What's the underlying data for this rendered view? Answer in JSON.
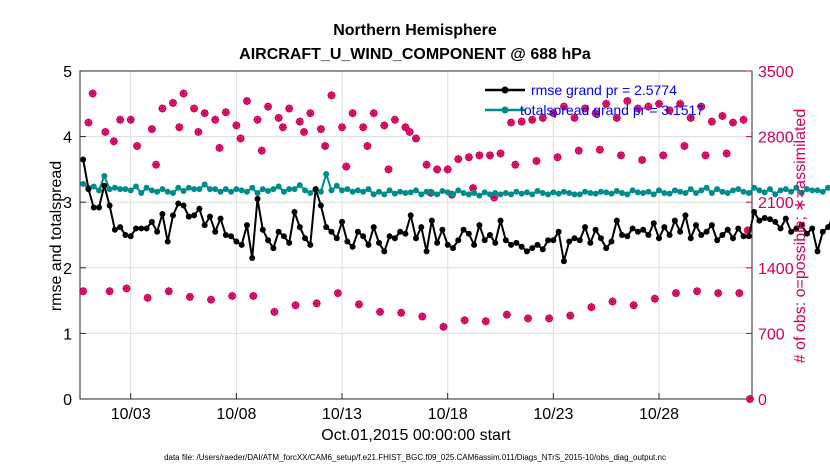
{
  "chart_data": {
    "type": "line",
    "title": "Northern Hemisphere",
    "subtitle": "AIRCRAFT_U_WIND_COMPONENT @ 688 hPa",
    "xlabel": "Oct.01,2015 00:00:00 start",
    "ylabel_left": "rmse and totalspread",
    "ylabel_right": "# of obs: o=possible; ∗=assimilated",
    "footer": "data file: /Users/raeder/DAI/ATM_forcXX/CAM6_setup/f.e21.FHIST_BGC.f09_025.CAM6assim.011/Diags_NTrS_2015-10/obs_diag_output.nc",
    "x_range": [
      0.6,
      32.4
    ],
    "y_left_range": [
      0,
      5
    ],
    "y_right_range": [
      0,
      3500
    ],
    "x_ticks": [
      {
        "value": 3,
        "label": "10/03"
      },
      {
        "value": 8,
        "label": "10/08"
      },
      {
        "value": 13,
        "label": "10/13"
      },
      {
        "value": 18,
        "label": "10/18"
      },
      {
        "value": 23,
        "label": "10/23"
      },
      {
        "value": 28,
        "label": "10/28"
      }
    ],
    "y_left_ticks": [
      "0",
      "1",
      "2",
      "3",
      "4",
      "5"
    ],
    "y_right_ticks": [
      "0",
      "700",
      "1400",
      "2100",
      "2800",
      "3500"
    ],
    "x_start": 0.75,
    "x_step": 0.25,
    "series": [
      {
        "name": "rmse",
        "legend": "rmse grand pr = 2.5774",
        "color": "#000000",
        "axis": "left",
        "values": [
          3.65,
          3.2,
          2.92,
          2.92,
          3.25,
          2.95,
          2.58,
          2.62,
          2.5,
          2.48,
          2.6,
          2.6,
          2.6,
          2.7,
          2.55,
          2.82,
          2.4,
          2.8,
          2.98,
          2.95,
          2.78,
          2.8,
          2.9,
          2.65,
          2.78,
          2.55,
          2.75,
          2.5,
          2.48,
          2.4,
          2.35,
          2.65,
          2.15,
          3.05,
          2.58,
          2.42,
          2.3,
          2.55,
          2.48,
          2.38,
          2.85,
          2.62,
          2.45,
          2.35,
          3.2,
          2.95,
          2.62,
          2.55,
          2.45,
          2.7,
          2.4,
          2.32,
          2.55,
          2.48,
          2.35,
          2.62,
          2.38,
          2.25,
          2.48,
          2.45,
          2.55,
          2.52,
          2.8,
          2.45,
          2.62,
          2.25,
          2.72,
          2.38,
          2.58,
          2.35,
          2.3,
          2.42,
          2.58,
          2.52,
          2.35,
          2.65,
          2.42,
          2.5,
          2.38,
          2.72,
          2.42,
          2.35,
          2.38,
          2.32,
          2.25,
          2.3,
          2.35,
          2.28,
          2.42,
          2.42,
          2.55,
          2.1,
          2.4,
          2.45,
          2.42,
          2.62,
          2.38,
          2.58,
          2.45,
          2.3,
          2.4,
          2.72,
          2.5,
          2.48,
          2.6,
          2.55,
          2.58,
          2.5,
          2.68,
          2.45,
          2.62,
          2.5,
          2.72,
          2.55,
          2.8,
          2.45,
          2.65,
          2.5,
          2.55,
          2.65,
          2.42,
          2.5,
          2.58,
          2.45,
          2.6,
          2.48,
          2.48,
          2.85,
          2.72,
          2.76,
          2.74,
          2.7,
          2.6,
          2.75,
          2.55,
          2.6,
          2.65,
          2.52,
          2.6,
          2.25,
          2.55,
          2.62,
          2.78,
          2.56
        ]
      },
      {
        "name": "totalspread",
        "legend": "totalspread grand pr = 3.1517",
        "color": "#008c8c",
        "axis": "left",
        "values": [
          3.28,
          3.22,
          3.24,
          3.18,
          3.4,
          3.2,
          3.22,
          3.2,
          3.2,
          3.18,
          3.24,
          3.14,
          3.22,
          3.18,
          3.16,
          3.2,
          3.16,
          3.14,
          3.22,
          3.17,
          3.22,
          3.2,
          3.2,
          3.27,
          3.2,
          3.2,
          3.16,
          3.2,
          3.16,
          3.2,
          3.18,
          3.16,
          3.22,
          3.14,
          3.2,
          3.17,
          3.2,
          3.24,
          3.16,
          3.2,
          3.2,
          3.26,
          3.18,
          3.14,
          3.2,
          3.16,
          3.43,
          3.18,
          3.25,
          3.18,
          3.2,
          3.16,
          3.18,
          3.16,
          3.2,
          3.12,
          3.16,
          3.12,
          3.18,
          3.13,
          3.16,
          3.14,
          3.15,
          3.18,
          3.12,
          3.16,
          3.15,
          3.12,
          3.17,
          3.15,
          3.12,
          3.18,
          3.14,
          3.12,
          3.14,
          3.1,
          3.15,
          3.12,
          3.14,
          3.12,
          3.14,
          3.12,
          3.16,
          3.13,
          3.15,
          3.12,
          3.17,
          3.14,
          3.12,
          3.15,
          3.13,
          3.16,
          3.14,
          3.12,
          3.12,
          3.16,
          3.14,
          3.13,
          3.16,
          3.15,
          3.13,
          3.17,
          3.14,
          3.12,
          3.18,
          3.15,
          3.14,
          3.16,
          3.12,
          3.18,
          3.14,
          3.13,
          3.18,
          3.16,
          3.14,
          3.2,
          3.14,
          3.18,
          3.22,
          3.14,
          3.2,
          3.16,
          3.14,
          3.18,
          3.2,
          3.16,
          3.14,
          3.22,
          3.18,
          3.15,
          3.2,
          3.12,
          3.18,
          3.2,
          3.16,
          3.22,
          3.14,
          3.2,
          3.18,
          3.18,
          3.16,
          3.22,
          3.24,
          3.2,
          3.18,
          3.14
        ]
      }
    ],
    "obs_possible": {
      "marker": "o",
      "color": "#d0005a",
      "axis": "right",
      "points": [
        [
          0.75,
          1150
        ],
        [
          1.0,
          2950
        ],
        [
          1.2,
          3260
        ],
        [
          1.8,
          2850
        ],
        [
          2.0,
          1150
        ],
        [
          2.2,
          2750
        ],
        [
          2.5,
          2980
        ],
        [
          2.8,
          1180
        ],
        [
          3.0,
          2980
        ],
        [
          3.3,
          2700
        ],
        [
          3.8,
          1080
        ],
        [
          4.0,
          2880
        ],
        [
          4.2,
          2500
        ],
        [
          4.5,
          3100
        ],
        [
          4.8,
          1150
        ],
        [
          5.0,
          3160
        ],
        [
          5.3,
          2900
        ],
        [
          5.5,
          3260
        ],
        [
          5.8,
          1090
        ],
        [
          6.0,
          3100
        ],
        [
          6.2,
          2850
        ],
        [
          6.5,
          3050
        ],
        [
          6.8,
          1060
        ],
        [
          7.0,
          2980
        ],
        [
          7.2,
          2680
        ],
        [
          7.5,
          3060
        ],
        [
          7.8,
          1100
        ],
        [
          8.0,
          2920
        ],
        [
          8.2,
          2780
        ],
        [
          8.5,
          3180
        ],
        [
          8.8,
          1100
        ],
        [
          9.0,
          2980
        ],
        [
          9.2,
          2650
        ],
        [
          9.5,
          3120
        ],
        [
          9.8,
          930
        ],
        [
          10.0,
          3000
        ],
        [
          10.2,
          2900
        ],
        [
          10.5,
          3100
        ],
        [
          10.8,
          1000
        ],
        [
          11.0,
          2960
        ],
        [
          11.2,
          2850
        ],
        [
          11.5,
          3050
        ],
        [
          11.8,
          1020
        ],
        [
          12.0,
          2880
        ],
        [
          12.2,
          2700
        ],
        [
          12.5,
          3240
        ],
        [
          12.8,
          1130
        ],
        [
          13.0,
          2900
        ],
        [
          13.2,
          2480
        ],
        [
          13.5,
          3050
        ],
        [
          13.8,
          1010
        ],
        [
          14.0,
          2900
        ],
        [
          14.2,
          2700
        ],
        [
          14.5,
          3050
        ],
        [
          14.8,
          930
        ],
        [
          15.0,
          2920
        ],
        [
          15.2,
          2450
        ],
        [
          15.5,
          2980
        ],
        [
          15.8,
          920
        ],
        [
          16.0,
          2900
        ],
        [
          16.2,
          2850
        ],
        [
          16.5,
          2780
        ],
        [
          16.8,
          880
        ],
        [
          17.0,
          2500
        ],
        [
          17.2,
          2200
        ],
        [
          17.5,
          2450
        ],
        [
          17.8,
          770
        ],
        [
          18.0,
          2450
        ],
        [
          18.2,
          2180
        ],
        [
          18.5,
          2560
        ],
        [
          18.8,
          840
        ],
        [
          19.0,
          2580
        ],
        [
          19.2,
          2250
        ],
        [
          19.5,
          2600
        ],
        [
          19.8,
          830
        ],
        [
          20.0,
          2600
        ],
        [
          20.2,
          2150
        ],
        [
          20.5,
          2620
        ],
        [
          20.8,
          900
        ],
        [
          21.0,
          2950
        ],
        [
          21.2,
          2500
        ],
        [
          21.5,
          2960
        ],
        [
          21.8,
          860
        ],
        [
          22.0,
          2980
        ],
        [
          22.2,
          2540
        ],
        [
          22.5,
          3000
        ],
        [
          22.8,
          860
        ],
        [
          23.0,
          3050
        ],
        [
          23.2,
          2580
        ],
        [
          23.5,
          3120
        ],
        [
          23.8,
          890
        ],
        [
          24.0,
          3000
        ],
        [
          24.2,
          2650
        ],
        [
          24.5,
          3100
        ],
        [
          24.8,
          980
        ],
        [
          25.0,
          3050
        ],
        [
          25.2,
          2660
        ],
        [
          25.5,
          3150
        ],
        [
          25.8,
          1040
        ],
        [
          26.0,
          3000
        ],
        [
          26.2,
          2600
        ],
        [
          26.5,
          3180
        ],
        [
          26.8,
          1000
        ],
        [
          27.0,
          3100
        ],
        [
          27.2,
          2550
        ],
        [
          27.5,
          3120
        ],
        [
          27.8,
          1070
        ],
        [
          28.0,
          3150
        ],
        [
          28.2,
          2600
        ],
        [
          28.5,
          3080
        ],
        [
          28.8,
          1130
        ],
        [
          29.0,
          3150
        ],
        [
          29.2,
          2700
        ],
        [
          29.5,
          3000
        ],
        [
          29.8,
          1150
        ],
        [
          30.0,
          3120
        ],
        [
          30.2,
          2600
        ],
        [
          30.5,
          2960
        ],
        [
          30.8,
          1130
        ],
        [
          31.0,
          3020
        ],
        [
          31.2,
          2620
        ],
        [
          31.5,
          2950
        ],
        [
          31.8,
          1130
        ],
        [
          32.0,
          2980
        ],
        [
          32.2,
          1800
        ],
        [
          32.3,
          0
        ]
      ]
    },
    "obs_assimilated": {
      "marker": "*",
      "color": "#d0005a",
      "axis": "right",
      "points": [
        [
          0.75,
          1150
        ],
        [
          1.0,
          2950
        ],
        [
          1.2,
          3260
        ],
        [
          1.8,
          2850
        ],
        [
          2.0,
          1150
        ],
        [
          2.2,
          2750
        ],
        [
          2.5,
          2980
        ],
        [
          2.8,
          1180
        ],
        [
          3.0,
          2980
        ],
        [
          3.3,
          2700
        ],
        [
          3.8,
          1080
        ],
        [
          4.0,
          2880
        ],
        [
          4.2,
          2500
        ],
        [
          4.5,
          3100
        ],
        [
          4.8,
          1150
        ],
        [
          5.0,
          3160
        ],
        [
          5.3,
          2900
        ],
        [
          5.5,
          3260
        ],
        [
          5.8,
          1090
        ],
        [
          6.0,
          3100
        ],
        [
          6.2,
          2850
        ],
        [
          6.5,
          3050
        ],
        [
          6.8,
          1060
        ],
        [
          7.0,
          2980
        ],
        [
          7.2,
          2680
        ],
        [
          7.5,
          3060
        ],
        [
          7.8,
          1100
        ],
        [
          8.0,
          2920
        ],
        [
          8.2,
          2780
        ],
        [
          8.5,
          3180
        ],
        [
          8.8,
          1100
        ],
        [
          9.0,
          2980
        ],
        [
          9.2,
          2650
        ],
        [
          9.5,
          3120
        ],
        [
          9.8,
          930
        ],
        [
          10.0,
          3000
        ],
        [
          10.2,
          2900
        ],
        [
          10.5,
          3100
        ],
        [
          10.8,
          1000
        ],
        [
          11.0,
          2960
        ],
        [
          11.2,
          2850
        ],
        [
          11.5,
          3050
        ],
        [
          11.8,
          1020
        ],
        [
          12.0,
          2880
        ],
        [
          12.2,
          2700
        ],
        [
          12.5,
          3240
        ],
        [
          12.8,
          1130
        ],
        [
          13.0,
          2900
        ],
        [
          13.2,
          2480
        ],
        [
          13.5,
          3050
        ],
        [
          13.8,
          1010
        ],
        [
          14.0,
          2900
        ],
        [
          14.2,
          2700
        ],
        [
          14.5,
          3050
        ],
        [
          14.8,
          930
        ],
        [
          15.0,
          2920
        ],
        [
          15.2,
          2450
        ],
        [
          15.5,
          2980
        ],
        [
          15.8,
          920
        ],
        [
          16.0,
          2900
        ],
        [
          16.2,
          2850
        ],
        [
          16.5,
          2780
        ],
        [
          16.8,
          880
        ],
        [
          17.0,
          2500
        ],
        [
          17.2,
          2200
        ],
        [
          17.5,
          2450
        ],
        [
          17.8,
          770
        ],
        [
          18.0,
          2450
        ],
        [
          18.2,
          2180
        ],
        [
          18.5,
          2560
        ],
        [
          18.8,
          840
        ],
        [
          19.0,
          2580
        ],
        [
          19.2,
          2250
        ],
        [
          19.5,
          2600
        ],
        [
          19.8,
          830
        ],
        [
          20.0,
          2600
        ],
        [
          20.2,
          2150
        ],
        [
          20.5,
          2620
        ],
        [
          20.8,
          900
        ],
        [
          21.0,
          2950
        ],
        [
          21.2,
          2500
        ],
        [
          21.5,
          2960
        ],
        [
          21.8,
          860
        ],
        [
          22.0,
          2980
        ],
        [
          22.2,
          2540
        ],
        [
          22.5,
          3000
        ],
        [
          22.8,
          860
        ],
        [
          23.0,
          3050
        ],
        [
          23.2,
          2580
        ],
        [
          23.5,
          3120
        ],
        [
          23.8,
          890
        ],
        [
          24.0,
          3000
        ],
        [
          24.2,
          2650
        ],
        [
          24.5,
          3100
        ],
        [
          24.8,
          980
        ],
        [
          25.0,
          3050
        ],
        [
          25.2,
          2660
        ],
        [
          25.5,
          3150
        ],
        [
          25.8,
          1040
        ],
        [
          26.0,
          3000
        ],
        [
          26.2,
          2600
        ],
        [
          26.5,
          3180
        ],
        [
          26.8,
          1000
        ],
        [
          27.0,
          3100
        ],
        [
          27.2,
          2550
        ],
        [
          27.5,
          3120
        ],
        [
          27.8,
          1070
        ],
        [
          28.0,
          3150
        ],
        [
          28.2,
          2600
        ],
        [
          28.5,
          3080
        ],
        [
          28.8,
          1130
        ],
        [
          29.0,
          3150
        ],
        [
          29.2,
          2700
        ],
        [
          29.5,
          3000
        ],
        [
          29.8,
          1150
        ],
        [
          30.0,
          3120
        ],
        [
          30.2,
          2600
        ],
        [
          30.5,
          2960
        ],
        [
          30.8,
          1130
        ],
        [
          31.0,
          3020
        ],
        [
          31.2,
          2620
        ],
        [
          31.5,
          2950
        ],
        [
          31.8,
          1130
        ],
        [
          32.0,
          2980
        ],
        [
          32.2,
          1800
        ],
        [
          32.3,
          0
        ]
      ]
    },
    "colors": {
      "axis_left": "#000000",
      "axis_right": "#d0005a",
      "grid": "#dddddd",
      "legend_text": "#0000ff"
    }
  }
}
